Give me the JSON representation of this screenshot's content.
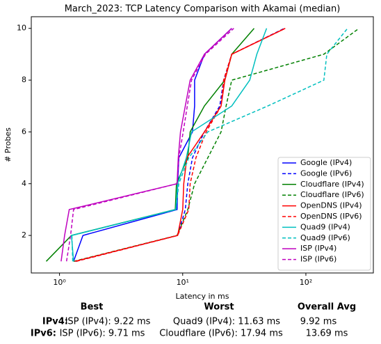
{
  "chart_data": {
    "type": "line",
    "title": "March_2023: TCP Latency Comparison with Akamai (median)",
    "x_label": "Latency in ms",
    "y_label": "# Probes",
    "xscale": "log",
    "xlim": [
      0.59,
      353
    ],
    "ylim": [
      0.55,
      10.45
    ],
    "xticks": [
      {
        "value": 1,
        "label": "10⁰"
      },
      {
        "value": 10,
        "label": "10¹"
      },
      {
        "value": 100,
        "label": "10²"
      }
    ],
    "yticks": [
      2,
      4,
      6,
      8,
      10
    ],
    "legend": "lower right",
    "series": [
      {
        "name": "Google (IPv4)",
        "color": "#0000ff",
        "linestyle": "solid",
        "x": [
          1.3,
          1.55,
          9.0,
          9.1,
          9.3,
          12,
          12.5,
          12.5,
          15,
          25
        ],
        "values": [
          1,
          2,
          3,
          4,
          5,
          6,
          7,
          8,
          9,
          10
        ]
      },
      {
        "name": "Google (IPv6)",
        "color": "#0000ff",
        "linestyle": "dashed",
        "x": [
          1.35,
          9.1,
          10.5,
          11,
          12,
          15,
          20,
          21.5,
          25,
          67
        ],
        "values": [
          1,
          2,
          3,
          4,
          5,
          6,
          7,
          8,
          9,
          10
        ]
      },
      {
        "name": "Cloudflare (IPv4)",
        "color": "#008000",
        "linestyle": "solid",
        "x": [
          0.78,
          1.25,
          8.7,
          8.9,
          11,
          11.5,
          15,
          22,
          25,
          38
        ],
        "values": [
          1,
          2,
          3,
          4,
          5,
          6,
          7,
          8,
          9,
          10
        ]
      },
      {
        "name": "Cloudflare (IPv6)",
        "color": "#008000",
        "linestyle": "dashed",
        "x": [
          1.3,
          9,
          11,
          12.5,
          16,
          20.5,
          22.5,
          25,
          140,
          270
        ],
        "values": [
          1,
          2,
          3,
          4,
          5,
          6,
          7,
          8,
          9,
          10
        ]
      },
      {
        "name": "OpenDNS (IPv4)",
        "color": "#ff0000",
        "linestyle": "solid",
        "x": [
          1.33,
          9.1,
          10,
          10.2,
          10.8,
          15,
          20.5,
          22,
          25,
          68
        ],
        "values": [
          1,
          2,
          3,
          4,
          5,
          6,
          7,
          8,
          9,
          10
        ]
      },
      {
        "name": "OpenDNS (IPv6)",
        "color": "#ff0000",
        "linestyle": "dashed",
        "x": [
          1.37,
          9.1,
          11.2,
          11.5,
          12.8,
          15.5,
          20.5,
          21.5,
          25,
          68
        ],
        "values": [
          1,
          2,
          3,
          4,
          5,
          6,
          7,
          8,
          9,
          10
        ]
      },
      {
        "name": "Quad9 (IPv4)",
        "color": "#00bfbf",
        "linestyle": "solid",
        "x": [
          1.3,
          1.25,
          8.8,
          9.1,
          10.7,
          11.8,
          25,
          35,
          40,
          48
        ],
        "values": [
          1,
          2,
          3,
          4,
          5,
          6,
          7,
          8,
          9,
          10
        ]
      },
      {
        "name": "Quad9 (IPv6)",
        "color": "#00bfbf",
        "linestyle": "dashed",
        "x": [
          1.28,
          1.26,
          8.8,
          9.3,
          11.2,
          16,
          49,
          140,
          148,
          218
        ],
        "values": [
          1,
          2,
          3,
          4,
          5,
          6,
          7,
          8,
          9,
          10
        ]
      },
      {
        "name": "ISP (IPv4)",
        "color": "#bf00bf",
        "linestyle": "solid",
        "x": [
          1.03,
          1.1,
          1.2,
          9,
          9.2,
          9.6,
          10.5,
          11.5,
          15,
          25
        ],
        "values": [
          1,
          2,
          3,
          4,
          5,
          6,
          7,
          8,
          9,
          10
        ]
      },
      {
        "name": "ISP (IPv6)",
        "color": "#bf00bf",
        "linestyle": "dashed",
        "x": [
          1.14,
          1.23,
          1.3,
          9,
          9.3,
          10.1,
          10.9,
          11.8,
          15.3,
          26
        ],
        "values": [
          1,
          2,
          3,
          4,
          5,
          6,
          7,
          8,
          9,
          10
        ]
      }
    ]
  },
  "summary": {
    "headers": [
      "Best",
      "Worst",
      "Overall Avg"
    ],
    "rows": [
      {
        "label": "IPv4:",
        "best": "ISP (IPv4): 9.22 ms",
        "worst": "Quad9 (IPv4): 11.63 ms",
        "avg": "9.92 ms"
      },
      {
        "label": "IPv6:",
        "best": "ISP (IPv6): 9.71 ms",
        "worst": "Cloudflare (IPv6): 17.94 ms",
        "avg": "13.69 ms"
      }
    ]
  }
}
